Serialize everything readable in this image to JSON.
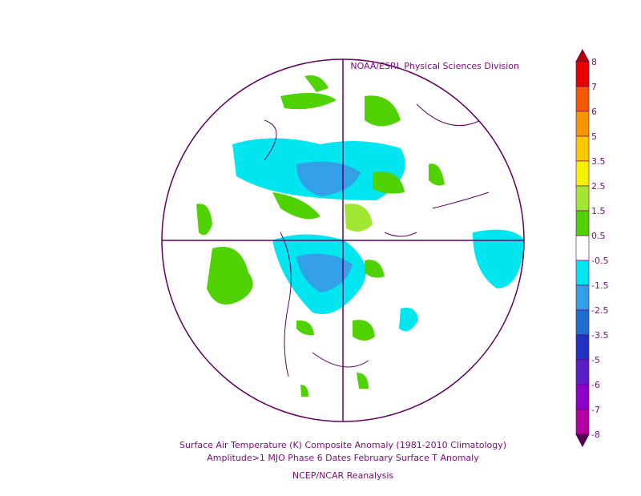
{
  "header": {
    "source": "NOAA/ESRL Physical Sciences Division"
  },
  "caption": {
    "line1": "Surface Air Temperature (K) Composite Anomaly (1981-2010 Climatology)",
    "line2": "Amplitude>1 MJO Phase 6 Dates February Surface T Anomaly",
    "line3": "NCEP/NCAR Reanalysis"
  },
  "colorbar": {
    "levels": [
      8,
      7,
      6,
      5,
      3.5,
      2.5,
      1.5,
      0.5,
      -0.5,
      -1.5,
      -2.5,
      -3.5,
      -5,
      -6,
      -7,
      -8
    ],
    "colors": [
      "#b40000",
      "#e60000",
      "#f55a00",
      "#f59600",
      "#fac800",
      "#f5f000",
      "#a0e632",
      "#50d200",
      "#ffffff",
      "#00e6f0",
      "#32a0e6",
      "#1e6ed2",
      "#1e32c8",
      "#5a1ec8",
      "#8c00c8",
      "#b400a0",
      "#500050"
    ]
  }
}
